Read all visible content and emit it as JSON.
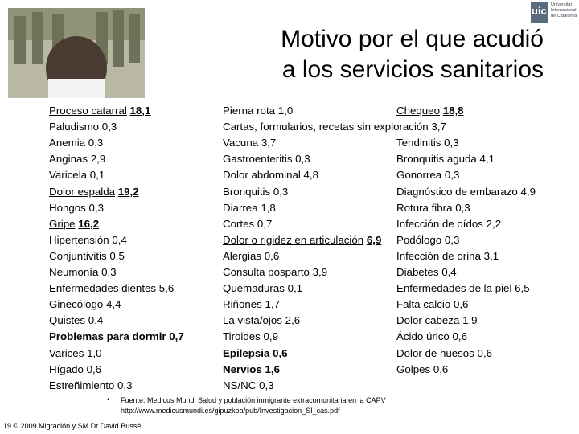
{
  "logo": {
    "mark": "uic",
    "lines": [
      "Universitat",
      "Internacional",
      "de Catalunya"
    ]
  },
  "title": [
    "Motivo por el que acudió",
    "a los servicios sanitarios"
  ],
  "columns": [
    {
      "items": [
        {
          "label": "Proceso catarral",
          "value": "18,1",
          "style": "underline"
        },
        {
          "label": "Paludismo",
          "value": "0,3"
        },
        {
          "label": "Anemia",
          "value": "0,3"
        },
        {
          "label": "Anginas",
          "value": "2,9"
        },
        {
          "label": "Varicela",
          "value": "0,1"
        },
        {
          "label": "Dolor espalda",
          "value": "19,2",
          "style": "underline"
        },
        {
          "label": "Hongos",
          "value": "0,3"
        },
        {
          "label": "Gripe",
          "value": "16,2",
          "style": "underline"
        },
        {
          "label": "Hipertensión",
          "value": "0,4"
        },
        {
          "label": "Conjuntivitis",
          "value": "0,5"
        },
        {
          "label": "Neumonía",
          "value": "0,3"
        },
        {
          "label": "Enfermedades dientes",
          "value": "5,6"
        },
        {
          "label": "Ginecólogo",
          "value": "4,4"
        },
        {
          "label": "Quistes",
          "value": "0,4"
        },
        {
          "label": "Problemas para dormir",
          "value": "0,7",
          "style": "bold"
        },
        {
          "label": "Varices",
          "value": "1,0"
        },
        {
          "label": "Hígado",
          "value": "0,6"
        },
        {
          "label": "Estreñimiento",
          "value": "0,3"
        }
      ]
    },
    {
      "items": [
        {
          "label": "Pierna rota",
          "value": "1,0"
        },
        {
          "label": "Cartas, formularios, recetas sin exploración",
          "value": "3,7"
        },
        {
          "label": "Vacuna",
          "value": "3,7"
        },
        {
          "label": "Gastroenteritis",
          "value": "0,3"
        },
        {
          "label": "Dolor abdominal",
          "value": "4,8"
        },
        {
          "label": "Bronquitis",
          "value": "0,3"
        },
        {
          "label": "Diarrea",
          "value": "1,8"
        },
        {
          "label": "Cortes",
          "value": "0,7"
        },
        {
          "label": "Dolor o rigidez en articulación",
          "value": "6,9",
          "style": "underline"
        },
        {
          "label": "Alergias",
          "value": "0,6"
        },
        {
          "label": "Consulta posparto",
          "value": "3,9"
        },
        {
          "label": "Quemaduras",
          "value": "0,1"
        },
        {
          "label": "Riñones",
          "value": "1,7"
        },
        {
          "label": "La vista/ojos",
          "value": "2,6"
        },
        {
          "label": "Tiroides",
          "value": "0,9"
        },
        {
          "label": "Epilepsia",
          "value": "0,6",
          "style": "bold"
        },
        {
          "label": "Nervios",
          "value": "1,6",
          "style": "bold"
        },
        {
          "label": "NS/NC",
          "value": "0,3"
        }
      ]
    },
    {
      "items": [
        {
          "label": "Chequeo",
          "value": "18,8",
          "style": "underline"
        },
        null,
        {
          "label": "Tendinitis",
          "value": "0,3"
        },
        {
          "label": "Bronquitis aguda",
          "value": "4,1"
        },
        {
          "label": "Gonorrea",
          "value": "0,3"
        },
        {
          "label": "Diagnóstico de embarazo",
          "value": "4,9"
        },
        {
          "label": "Rotura fibra",
          "value": "0,3"
        },
        {
          "label": "Infección de oídos",
          "value": "2,2"
        },
        {
          "label": "Podólogo",
          "value": "0,3"
        },
        {
          "label": "Infección de orina",
          "value": "3,1"
        },
        {
          "label": "Diabetes",
          "value": "0,4"
        },
        {
          "label": "Enfermedades de la piel",
          "value": "6,5"
        },
        {
          "label": "Falta calcio",
          "value": "0,6"
        },
        {
          "label": "Dolor cabeza",
          "value": "1,9"
        },
        {
          "label": "Ácido úrico",
          "value": "0,6"
        },
        {
          "label": "Dolor de huesos",
          "value": "0,6"
        },
        {
          "label": "Golpes",
          "value": "0,6"
        }
      ]
    }
  ],
  "source": [
    "Fuente: Medicus Mundi Salud y población inmigrante extracomunitaria en la CAPV",
    "http://www.medicusmundi.es/gipuzkoa/pub/Investigacion_SI_cas.pdf"
  ],
  "footer": "19 © 2009 Migración y SM Dr David Bussé"
}
